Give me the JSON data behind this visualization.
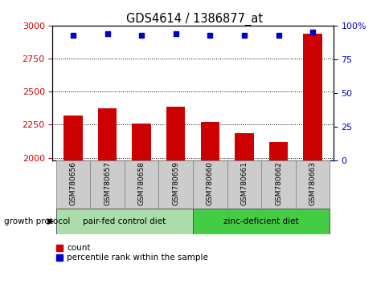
{
  "title": "GDS4614 / 1386877_at",
  "samples": [
    "GSM780656",
    "GSM780657",
    "GSM780658",
    "GSM780659",
    "GSM780660",
    "GSM780661",
    "GSM780662",
    "GSM780663"
  ],
  "counts": [
    2320,
    2375,
    2260,
    2385,
    2270,
    2185,
    2120,
    2940
  ],
  "percentile_ranks": [
    93,
    94,
    93,
    94,
    93,
    93,
    93,
    95
  ],
  "ylim_left": [
    1980,
    3000
  ],
  "ylim_right": [
    0,
    100
  ],
  "yticks_left": [
    2000,
    2250,
    2500,
    2750,
    3000
  ],
  "yticks_right": [
    0,
    25,
    50,
    75,
    100
  ],
  "bar_color": "#cc0000",
  "dot_color": "#0000cc",
  "group1_label": "pair-fed control diet",
  "group2_label": "zinc-deficient diet",
  "group1_indices": [
    0,
    1,
    2,
    3
  ],
  "group2_indices": [
    4,
    5,
    6,
    7
  ],
  "group1_color": "#aaddaa",
  "group2_color": "#44cc44",
  "bg_color": "#cccccc",
  "ylabel_left_color": "#cc0000",
  "ylabel_right_color": "#0000cc",
  "growth_protocol_label": "growth protocol",
  "legend_count_label": "count",
  "legend_pct_label": "percentile rank within the sample"
}
